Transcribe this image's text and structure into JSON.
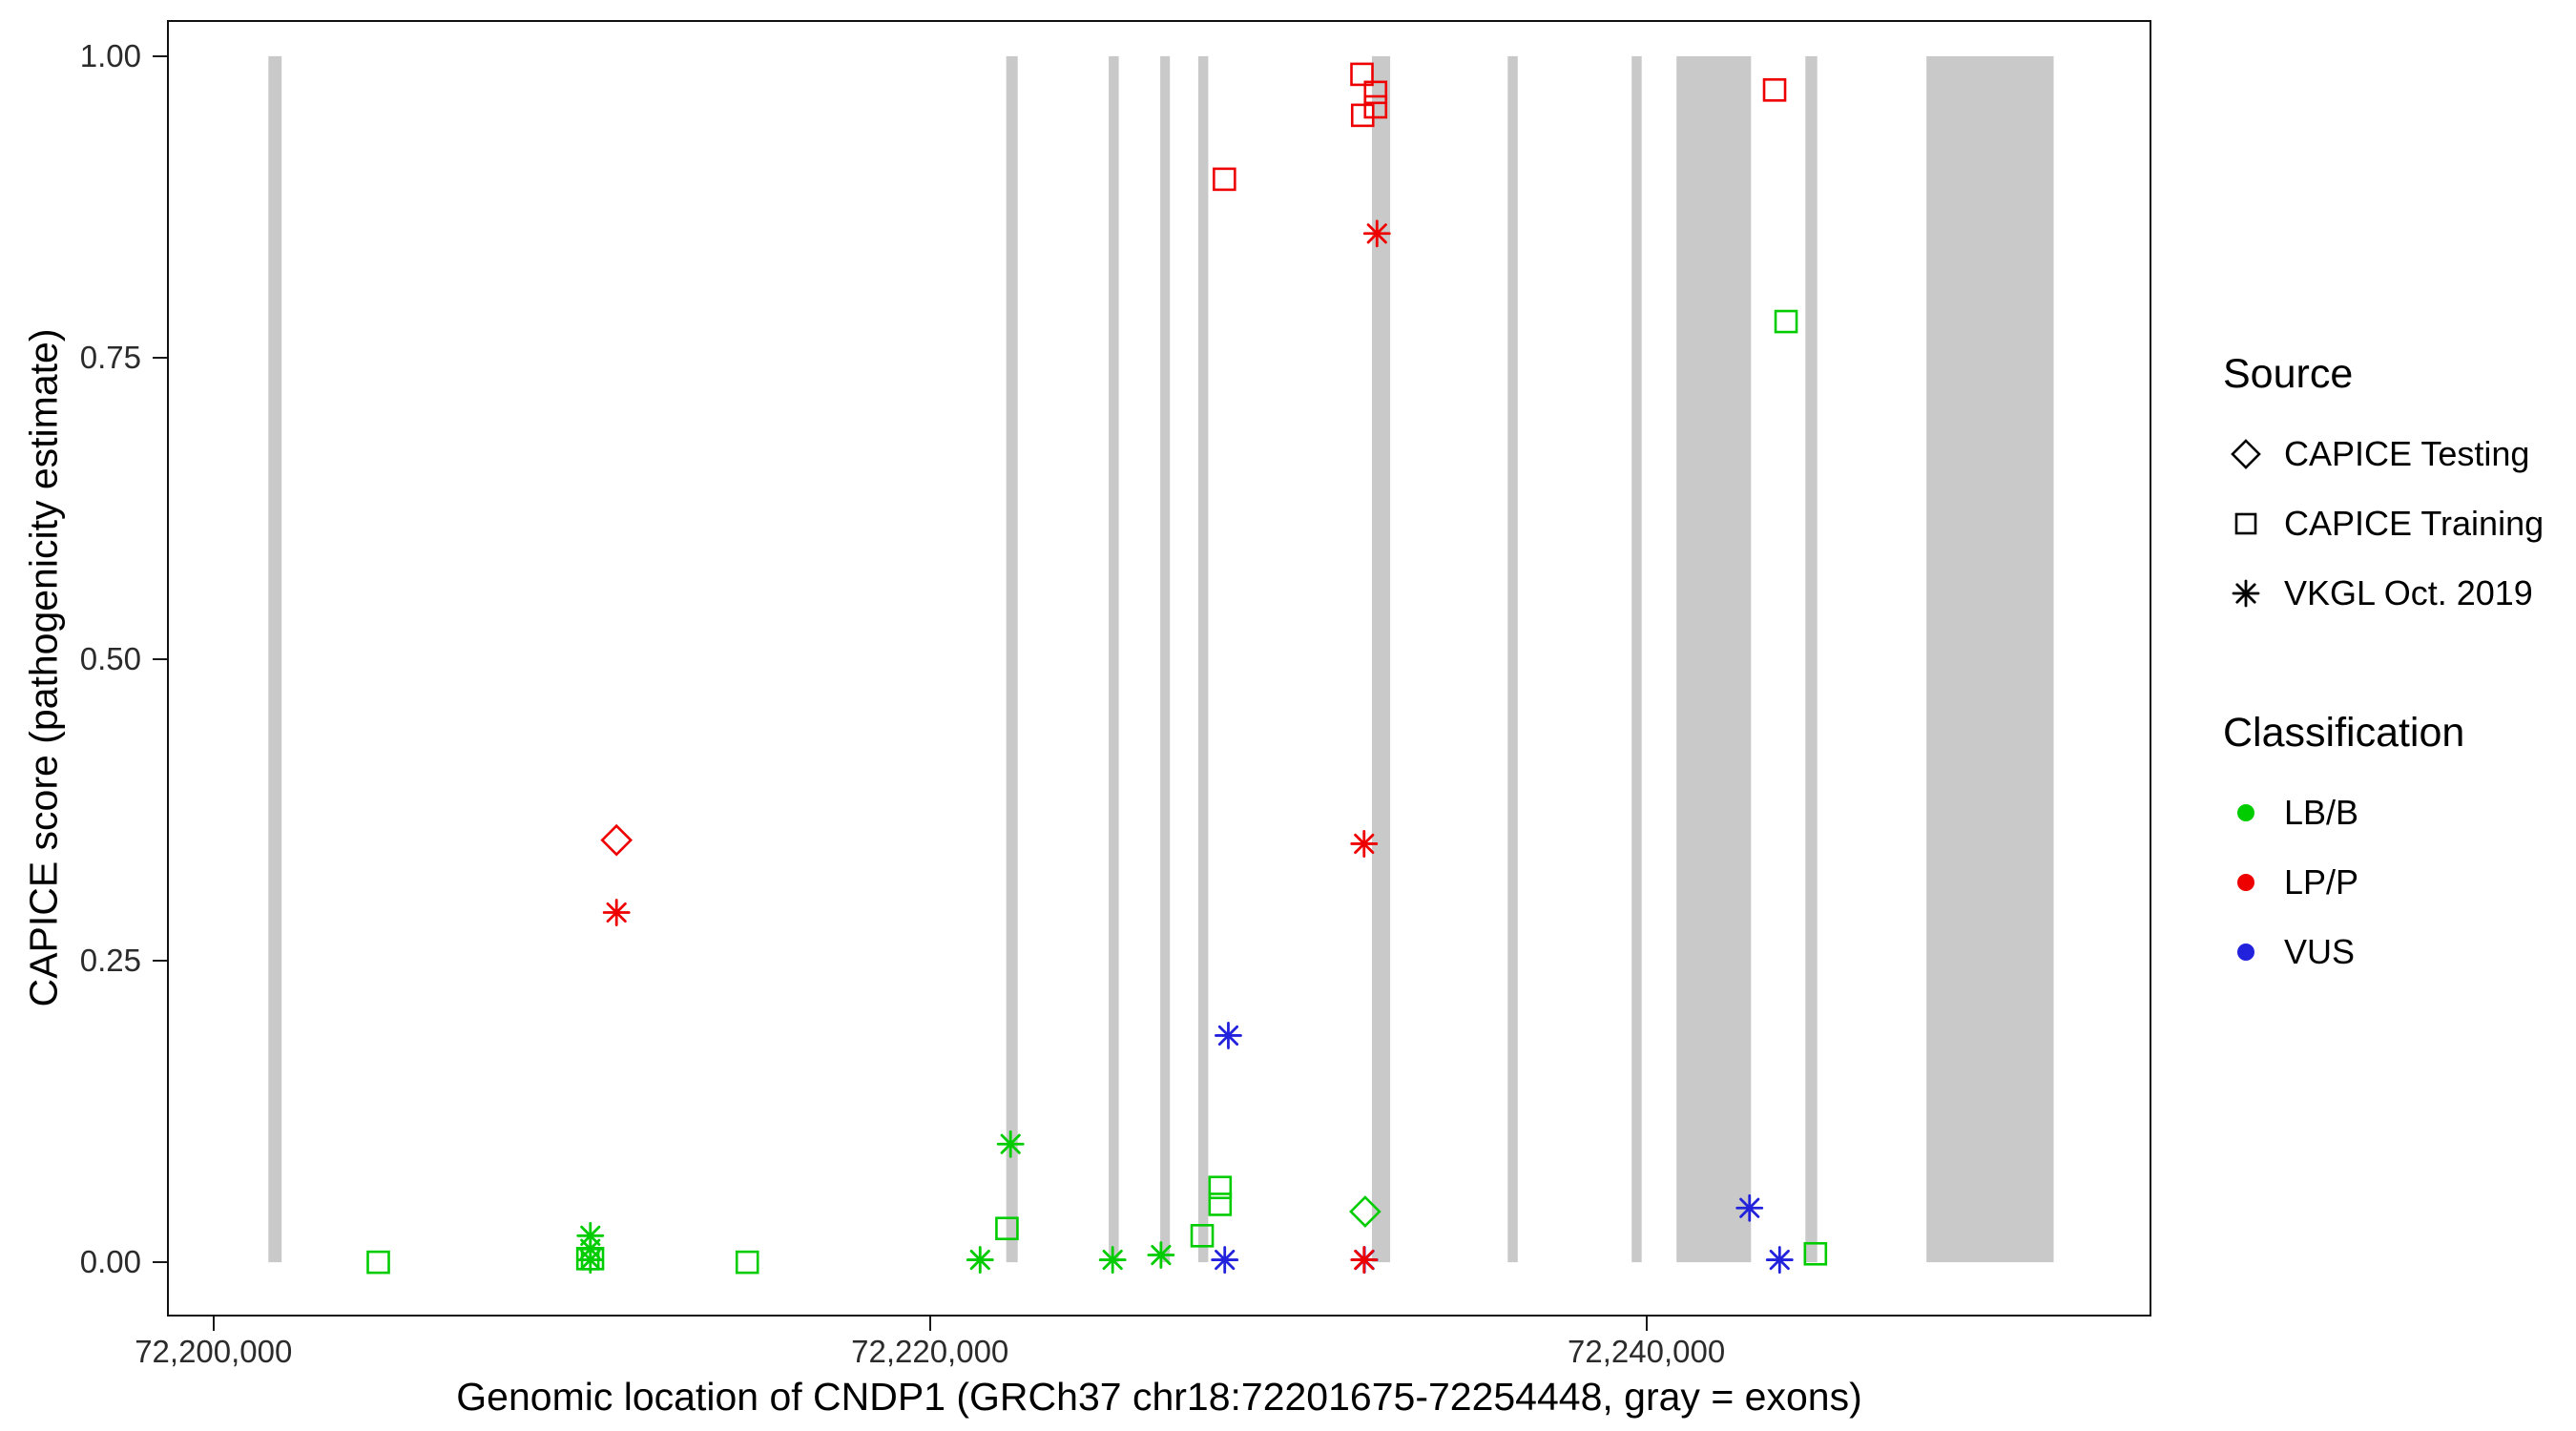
{
  "chart_data": {
    "type": "scatter",
    "title": "",
    "xlabel": "Genomic location of CNDP1 (GRCh37 chr18:72201675-72254448, gray = exons)",
    "ylabel": "CAPICE score (pathogenicity estimate)",
    "xlim": [
      72198700,
      72254100
    ],
    "ylim": [
      -0.045,
      1.03
    ],
    "grid": "off",
    "x_ticks": [
      {
        "value": 72200000,
        "label": "72,200,000"
      },
      {
        "value": 72220000,
        "label": "72,220,000"
      },
      {
        "value": 72240000,
        "label": "72,240,000"
      }
    ],
    "y_ticks": [
      {
        "value": 0.0,
        "label": "0.00"
      },
      {
        "value": 0.25,
        "label": "0.25"
      },
      {
        "value": 0.5,
        "label": "0.50"
      },
      {
        "value": 0.75,
        "label": "0.75"
      },
      {
        "value": 1.0,
        "label": "1.00"
      }
    ],
    "exons": [
      [
        72201530,
        72201900
      ],
      [
        72222130,
        72222450
      ],
      [
        72224990,
        72225270
      ],
      [
        72226430,
        72226700
      ],
      [
        72227490,
        72227770
      ],
      [
        72232340,
        72232850
      ],
      [
        72236130,
        72236410
      ],
      [
        72239590,
        72239870
      ],
      [
        72240840,
        72242920
      ],
      [
        72244440,
        72244770
      ],
      [
        72247820,
        72251370
      ]
    ],
    "exon_y_range": [
      0.0,
      1.0
    ],
    "points": [
      {
        "x": 72204600,
        "y": 0.0,
        "source": "CAPICE Training",
        "classification": "LB/B"
      },
      {
        "x": 72210450,
        "y": 0.003,
        "source": "CAPICE Training",
        "classification": "LB/B"
      },
      {
        "x": 72210580,
        "y": 0.003,
        "source": "CAPICE Training",
        "classification": "LB/B"
      },
      {
        "x": 72210520,
        "y": 0.022,
        "source": "VKGL Oct. 2019",
        "classification": "LB/B"
      },
      {
        "x": 72210520,
        "y": 0.011,
        "source": "VKGL Oct. 2019",
        "classification": "LB/B"
      },
      {
        "x": 72210520,
        "y": 0.002,
        "source": "VKGL Oct. 2019",
        "classification": "LB/B"
      },
      {
        "x": 72214900,
        "y": 0.0,
        "source": "CAPICE Training",
        "classification": "LB/B"
      },
      {
        "x": 72221400,
        "y": 0.002,
        "source": "VKGL Oct. 2019",
        "classification": "LB/B"
      },
      {
        "x": 72222150,
        "y": 0.028,
        "source": "CAPICE Training",
        "classification": "LB/B"
      },
      {
        "x": 72222250,
        "y": 0.098,
        "source": "VKGL Oct. 2019",
        "classification": "LB/B"
      },
      {
        "x": 72225100,
        "y": 0.002,
        "source": "VKGL Oct. 2019",
        "classification": "LB/B"
      },
      {
        "x": 72226450,
        "y": 0.006,
        "source": "VKGL Oct. 2019",
        "classification": "LB/B"
      },
      {
        "x": 72227600,
        "y": 0.022,
        "source": "CAPICE Training",
        "classification": "LB/B"
      },
      {
        "x": 72228100,
        "y": 0.062,
        "source": "CAPICE Training",
        "classification": "LB/B"
      },
      {
        "x": 72228100,
        "y": 0.048,
        "source": "CAPICE Training",
        "classification": "LB/B"
      },
      {
        "x": 72232150,
        "y": 0.042,
        "source": "CAPICE Testing",
        "classification": "LB/B"
      },
      {
        "x": 72243900,
        "y": 0.78,
        "source": "CAPICE Training",
        "classification": "LB/B"
      },
      {
        "x": 72244720,
        "y": 0.007,
        "source": "CAPICE Training",
        "classification": "LB/B"
      },
      {
        "x": 72228330,
        "y": 0.188,
        "source": "VKGL Oct. 2019",
        "classification": "VUS"
      },
      {
        "x": 72228230,
        "y": 0.002,
        "source": "VKGL Oct. 2019",
        "classification": "VUS"
      },
      {
        "x": 72232130,
        "y": 0.002,
        "source": "VKGL Oct. 2019",
        "classification": "VUS"
      },
      {
        "x": 72242880,
        "y": 0.045,
        "source": "VKGL Oct. 2019",
        "classification": "VUS"
      },
      {
        "x": 72243720,
        "y": 0.002,
        "source": "VKGL Oct. 2019",
        "classification": "VUS"
      },
      {
        "x": 72211250,
        "y": 0.35,
        "source": "CAPICE Testing",
        "classification": "LP/P"
      },
      {
        "x": 72211250,
        "y": 0.29,
        "source": "VKGL Oct. 2019",
        "classification": "LP/P"
      },
      {
        "x": 72228220,
        "y": 0.898,
        "source": "CAPICE Training",
        "classification": "LP/P"
      },
      {
        "x": 72232060,
        "y": 0.985,
        "source": "CAPICE Training",
        "classification": "LP/P"
      },
      {
        "x": 72232440,
        "y": 0.97,
        "source": "CAPICE Training",
        "classification": "LP/P"
      },
      {
        "x": 72232440,
        "y": 0.958,
        "source": "CAPICE Training",
        "classification": "LP/P"
      },
      {
        "x": 72232080,
        "y": 0.951,
        "source": "CAPICE Training",
        "classification": "LP/P"
      },
      {
        "x": 72232480,
        "y": 0.853,
        "source": "VKGL Oct. 2019",
        "classification": "LP/P"
      },
      {
        "x": 72232120,
        "y": 0.347,
        "source": "VKGL Oct. 2019",
        "classification": "LP/P"
      },
      {
        "x": 72232120,
        "y": 0.002,
        "source": "VKGL Oct. 2019",
        "classification": "LP/P"
      },
      {
        "x": 72243580,
        "y": 0.972,
        "source": "CAPICE Training",
        "classification": "LP/P"
      }
    ],
    "legend": {
      "position": "right",
      "source": {
        "title": "Source",
        "items": [
          {
            "label": "CAPICE Testing",
            "marker": "diamond"
          },
          {
            "label": "CAPICE Training",
            "marker": "square"
          },
          {
            "label": "VKGL Oct. 2019",
            "marker": "asterisk"
          }
        ]
      },
      "classification": {
        "title": "Classification",
        "items": [
          {
            "label": "LB/B",
            "color_key": "LB/B"
          },
          {
            "label": "LP/P",
            "color_key": "LP/P"
          },
          {
            "label": "VUS",
            "color_key": "VUS"
          }
        ]
      }
    },
    "colors": {
      "LB/B": "#00CC00",
      "LP/P": "#EE0000",
      "VUS": "#2222DD",
      "exon": "#C9C9C9",
      "panel_border": "#111111"
    }
  }
}
